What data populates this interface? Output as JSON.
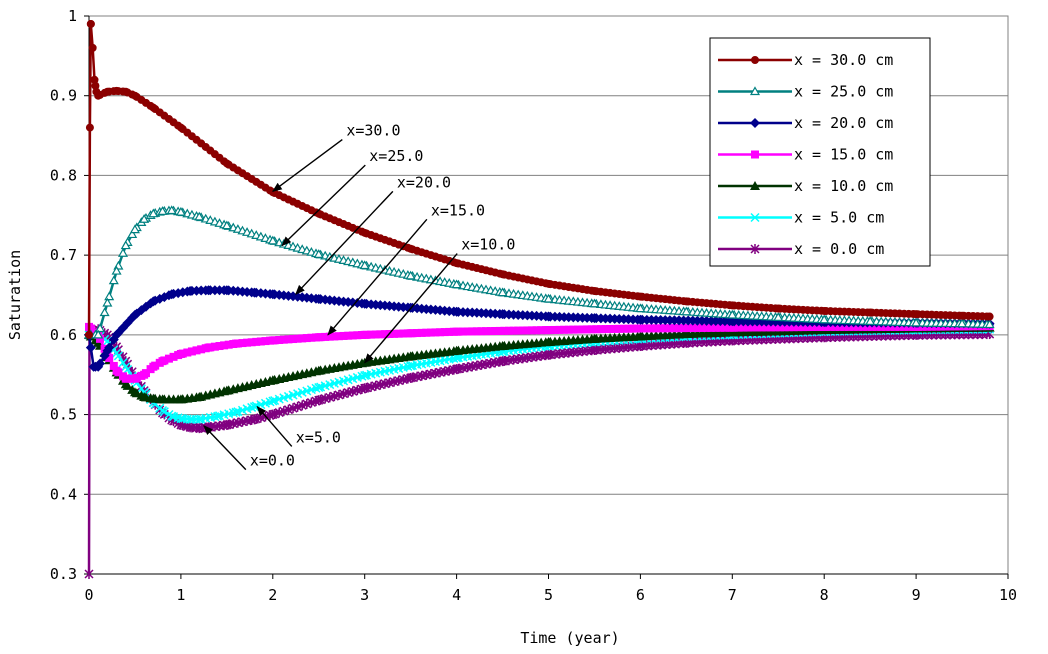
{
  "chart_data": {
    "type": "line",
    "title": "",
    "xlabel": "Time (year)",
    "ylabel": "Saturation",
    "xlim": [
      0,
      10
    ],
    "ylim": [
      0.3,
      1
    ],
    "xticks": [
      "0",
      "1",
      "2",
      "3",
      "4",
      "5",
      "6",
      "7",
      "8",
      "9",
      "10"
    ],
    "yticks": [
      "0.3",
      "0.4",
      "0.5",
      "0.6",
      "0.7",
      "0.8",
      "0.9",
      "1"
    ],
    "grid": "horizontal",
    "legend_position": "top-right",
    "series": [
      {
        "name": "x = 30.0 cm",
        "color": "#8B0000",
        "marker": "circle",
        "points": [
          [
            0,
            0.6
          ],
          [
            0.01,
            0.86
          ],
          [
            0.02,
            0.99
          ],
          [
            0.04,
            0.96
          ],
          [
            0.06,
            0.92
          ],
          [
            0.08,
            0.905
          ],
          [
            0.1,
            0.9
          ],
          [
            0.2,
            0.905
          ],
          [
            0.3,
            0.906
          ],
          [
            0.4,
            0.905
          ],
          [
            0.5,
            0.9
          ],
          [
            0.7,
            0.885
          ],
          [
            1.0,
            0.86
          ],
          [
            1.5,
            0.815
          ],
          [
            2.0,
            0.779
          ],
          [
            2.5,
            0.752
          ],
          [
            3.0,
            0.728
          ],
          [
            3.5,
            0.708
          ],
          [
            4.0,
            0.69
          ],
          [
            4.5,
            0.676
          ],
          [
            5.0,
            0.664
          ],
          [
            5.5,
            0.655
          ],
          [
            6.0,
            0.648
          ],
          [
            6.5,
            0.642
          ],
          [
            7.0,
            0.637
          ],
          [
            7.5,
            0.633
          ],
          [
            8.0,
            0.63
          ],
          [
            8.5,
            0.628
          ],
          [
            9.0,
            0.626
          ],
          [
            9.5,
            0.624
          ],
          [
            9.8,
            0.623
          ]
        ]
      },
      {
        "name": "x = 25.0 cm",
        "color": "#008080",
        "marker": "triangle-open",
        "points": [
          [
            0,
            0.6
          ],
          [
            0.1,
            0.6
          ],
          [
            0.2,
            0.64
          ],
          [
            0.3,
            0.68
          ],
          [
            0.4,
            0.712
          ],
          [
            0.5,
            0.732
          ],
          [
            0.6,
            0.745
          ],
          [
            0.7,
            0.752
          ],
          [
            0.8,
            0.755
          ],
          [
            0.9,
            0.756
          ],
          [
            1.0,
            0.754
          ],
          [
            1.2,
            0.748
          ],
          [
            1.5,
            0.737
          ],
          [
            2.0,
            0.718
          ],
          [
            2.5,
            0.701
          ],
          [
            3.0,
            0.687
          ],
          [
            3.5,
            0.674
          ],
          [
            4.0,
            0.663
          ],
          [
            4.5,
            0.653
          ],
          [
            5.0,
            0.645
          ],
          [
            5.5,
            0.639
          ],
          [
            6.0,
            0.633
          ],
          [
            6.5,
            0.629
          ],
          [
            7.0,
            0.625
          ],
          [
            7.5,
            0.622
          ],
          [
            8.0,
            0.619
          ],
          [
            8.5,
            0.617
          ],
          [
            9.0,
            0.615
          ],
          [
            9.5,
            0.614
          ],
          [
            9.8,
            0.613
          ]
        ]
      },
      {
        "name": "x = 20.0 cm",
        "color": "#00008B",
        "marker": "diamond",
        "points": [
          [
            0,
            0.6
          ],
          [
            0.05,
            0.56
          ],
          [
            0.1,
            0.56
          ],
          [
            0.2,
            0.58
          ],
          [
            0.3,
            0.6
          ],
          [
            0.5,
            0.625
          ],
          [
            0.7,
            0.642
          ],
          [
            0.9,
            0.651
          ],
          [
            1.1,
            0.655
          ],
          [
            1.3,
            0.656
          ],
          [
            1.5,
            0.656
          ],
          [
            1.8,
            0.653
          ],
          [
            2.0,
            0.651
          ],
          [
            2.5,
            0.645
          ],
          [
            3.0,
            0.639
          ],
          [
            3.5,
            0.634
          ],
          [
            4.0,
            0.629
          ],
          [
            4.5,
            0.626
          ],
          [
            5.0,
            0.623
          ],
          [
            5.5,
            0.621
          ],
          [
            6.0,
            0.619
          ],
          [
            7.0,
            0.617
          ],
          [
            8.0,
            0.616
          ],
          [
            9.0,
            0.615
          ],
          [
            9.8,
            0.614
          ]
        ]
      },
      {
        "name": "x = 15.0 cm",
        "color": "#FF00FF",
        "marker": "square",
        "points": [
          [
            0,
            0.61
          ],
          [
            0.1,
            0.6
          ],
          [
            0.2,
            0.575
          ],
          [
            0.3,
            0.555
          ],
          [
            0.4,
            0.545
          ],
          [
            0.5,
            0.545
          ],
          [
            0.6,
            0.55
          ],
          [
            0.7,
            0.56
          ],
          [
            0.8,
            0.567
          ],
          [
            1.0,
            0.576
          ],
          [
            1.3,
            0.584
          ],
          [
            1.6,
            0.589
          ],
          [
            2.0,
            0.593
          ],
          [
            2.5,
            0.597
          ],
          [
            3.0,
            0.6
          ],
          [
            3.5,
            0.602
          ],
          [
            4.0,
            0.604
          ],
          [
            5.0,
            0.606
          ],
          [
            6.0,
            0.608
          ],
          [
            7.0,
            0.609
          ],
          [
            8.0,
            0.61
          ],
          [
            9.0,
            0.61
          ],
          [
            9.8,
            0.611
          ]
        ]
      },
      {
        "name": "x = 10.0 cm",
        "color": "#003300",
        "marker": "triangle",
        "points": [
          [
            0,
            0.6
          ],
          [
            0.1,
            0.59
          ],
          [
            0.2,
            0.572
          ],
          [
            0.3,
            0.553
          ],
          [
            0.4,
            0.538
          ],
          [
            0.5,
            0.528
          ],
          [
            0.6,
            0.522
          ],
          [
            0.7,
            0.52
          ],
          [
            0.8,
            0.519
          ],
          [
            1.0,
            0.519
          ],
          [
            1.2,
            0.522
          ],
          [
            1.5,
            0.53
          ],
          [
            2.0,
            0.543
          ],
          [
            2.5,
            0.555
          ],
          [
            3.0,
            0.565
          ],
          [
            3.5,
            0.573
          ],
          [
            4.0,
            0.58
          ],
          [
            4.5,
            0.586
          ],
          [
            5.0,
            0.591
          ],
          [
            5.5,
            0.595
          ],
          [
            6.0,
            0.598
          ],
          [
            6.5,
            0.601
          ],
          [
            7.0,
            0.603
          ],
          [
            8.0,
            0.606
          ],
          [
            9.0,
            0.608
          ],
          [
            9.8,
            0.609
          ]
        ]
      },
      {
        "name": "x = 5.0 cm",
        "color": "#00FFFF",
        "marker": "x",
        "points": [
          [
            0,
            0.6
          ],
          [
            0.1,
            0.6
          ],
          [
            0.2,
            0.592
          ],
          [
            0.3,
            0.577
          ],
          [
            0.4,
            0.56
          ],
          [
            0.5,
            0.543
          ],
          [
            0.6,
            0.528
          ],
          [
            0.7,
            0.515
          ],
          [
            0.8,
            0.505
          ],
          [
            0.9,
            0.498
          ],
          [
            1.0,
            0.495
          ],
          [
            1.1,
            0.494
          ],
          [
            1.2,
            0.494
          ],
          [
            1.4,
            0.498
          ],
          [
            1.6,
            0.503
          ],
          [
            1.8,
            0.51
          ],
          [
            2.0,
            0.517
          ],
          [
            2.5,
            0.534
          ],
          [
            3.0,
            0.549
          ],
          [
            3.5,
            0.561
          ],
          [
            4.0,
            0.571
          ],
          [
            4.5,
            0.579
          ],
          [
            5.0,
            0.586
          ],
          [
            5.5,
            0.591
          ],
          [
            6.0,
            0.595
          ],
          [
            6.5,
            0.598
          ],
          [
            7.0,
            0.6
          ],
          [
            8.0,
            0.604
          ],
          [
            9.0,
            0.606
          ],
          [
            9.8,
            0.607
          ]
        ]
      },
      {
        "name": "x = 0.0 cm",
        "color": "#800080",
        "marker": "star",
        "points": [
          [
            0,
            0.3
          ],
          [
            0.005,
            0.6
          ],
          [
            0.05,
            0.6
          ],
          [
            0.1,
            0.607
          ],
          [
            0.2,
            0.6
          ],
          [
            0.3,
            0.585
          ],
          [
            0.4,
            0.567
          ],
          [
            0.5,
            0.548
          ],
          [
            0.6,
            0.53
          ],
          [
            0.7,
            0.515
          ],
          [
            0.8,
            0.502
          ],
          [
            0.9,
            0.493
          ],
          [
            1.0,
            0.487
          ],
          [
            1.1,
            0.484
          ],
          [
            1.2,
            0.483
          ],
          [
            1.3,
            0.484
          ],
          [
            1.5,
            0.487
          ],
          [
            1.8,
            0.494
          ],
          [
            2.0,
            0.5
          ],
          [
            2.5,
            0.518
          ],
          [
            3.0,
            0.533
          ],
          [
            3.5,
            0.546
          ],
          [
            4.0,
            0.557
          ],
          [
            4.5,
            0.567
          ],
          [
            5.0,
            0.575
          ],
          [
            5.5,
            0.581
          ],
          [
            6.0,
            0.586
          ],
          [
            6.5,
            0.59
          ],
          [
            7.0,
            0.593
          ],
          [
            8.0,
            0.597
          ],
          [
            9.0,
            0.6
          ],
          [
            9.8,
            0.601
          ]
        ]
      }
    ],
    "annotations": [
      {
        "text": "x=30.0",
        "x": 2.8,
        "y": 0.85,
        "ax": 2.0,
        "ay": 0.78
      },
      {
        "text": "x=25.0",
        "x": 3.05,
        "y": 0.818,
        "ax": 2.1,
        "ay": 0.712
      },
      {
        "text": "x=20.0",
        "x": 3.35,
        "y": 0.785,
        "ax": 2.25,
        "ay": 0.651
      },
      {
        "text": "x=15.0",
        "x": 3.72,
        "y": 0.75,
        "ax": 2.6,
        "ay": 0.6
      },
      {
        "text": "x=10.0",
        "x": 4.05,
        "y": 0.707,
        "ax": 3.0,
        "ay": 0.565
      },
      {
        "text": "x=5.0",
        "x": 2.25,
        "y": 0.465,
        "ax": 1.83,
        "ay": 0.51
      },
      {
        "text": "x=0.0",
        "x": 1.75,
        "y": 0.436,
        "ax": 1.25,
        "ay": 0.486
      }
    ]
  }
}
